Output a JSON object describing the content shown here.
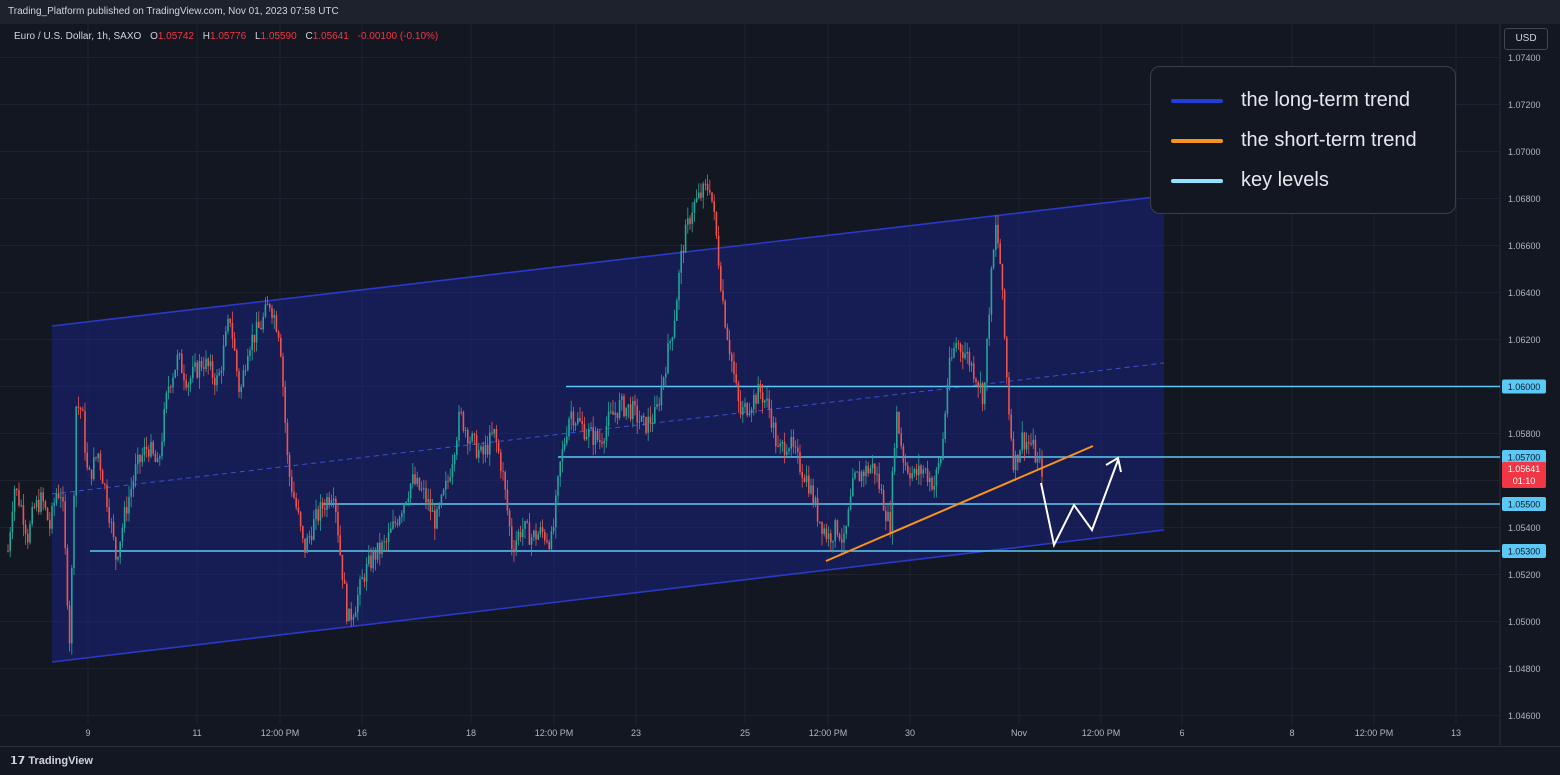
{
  "header": {
    "published_text": "Trading_Platform published on TradingView.com, Nov 01, 2023 07:58 UTC"
  },
  "symbol_line": {
    "name": "Euro / U.S. Dollar, 1h, SAXO",
    "o_label": "O",
    "o_value": "1.05742",
    "h_label": "H",
    "h_value": "1.05776",
    "l_label": "L",
    "l_value": "1.05590",
    "c_label": "C",
    "c_value": "1.05641",
    "change": "-0.00100 (-0.10%)"
  },
  "currency_button": "USD",
  "brand": "TradingView",
  "legend": {
    "items": [
      {
        "label": "the long-term trend",
        "color": "#1e3fd8"
      },
      {
        "label": "the short-term trend",
        "color": "#f7931e"
      },
      {
        "label": "key levels",
        "color": "#8fe3ff"
      }
    ]
  },
  "chart_data": {
    "type": "candlestick",
    "series_name": "Euro / U.S. Dollar",
    "y_ticks": [
      "1.07400",
      "1.07200",
      "1.07000",
      "1.06800",
      "1.06600",
      "1.06400",
      "1.06200",
      "1.06000",
      "1.05800",
      "1.05600",
      "1.05400",
      "1.05200",
      "1.05000",
      "1.04800",
      "1.04600"
    ],
    "ylim": [
      1.0455,
      1.076
    ],
    "x_ticks": [
      "9",
      "11",
      "12:00 PM",
      "16",
      "18",
      "12:00 PM",
      "23",
      "25",
      "12:00 PM",
      "30",
      "Nov",
      "12:00 PM",
      "6",
      "8",
      "12:00 PM",
      "13"
    ],
    "key_levels": [
      {
        "value": 1.06,
        "label": "1.06000"
      },
      {
        "value": 1.057,
        "label": "1.05700"
      },
      {
        "value": 1.055,
        "label": "1.05500"
      },
      {
        "value": 1.053,
        "label": "1.05300"
      }
    ],
    "current_price": {
      "value": 1.05641,
      "label": "1.05641",
      "countdown": "01:10"
    },
    "price_path": [
      [
        0,
        1.053
      ],
      [
        6,
        1.0558
      ],
      [
        14,
        1.0548
      ],
      [
        20,
        1.0536
      ],
      [
        26,
        1.0548
      ],
      [
        34,
        1.0552
      ],
      [
        42,
        1.054
      ],
      [
        48,
        1.0555
      ],
      [
        54,
        1.0555
      ],
      [
        62,
        1.049
      ],
      [
        68,
        1.0592
      ],
      [
        74,
        1.059
      ],
      [
        80,
        1.056
      ],
      [
        90,
        1.0572
      ],
      [
        100,
        1.055
      ],
      [
        108,
        1.0527
      ],
      [
        118,
        1.0548
      ],
      [
        128,
        1.0565
      ],
      [
        140,
        1.0575
      ],
      [
        150,
        1.0565
      ],
      [
        160,
        1.06
      ],
      [
        170,
        1.0612
      ],
      [
        180,
        1.0602
      ],
      [
        195,
        1.0611
      ],
      [
        210,
        1.0602
      ],
      [
        222,
        1.063
      ],
      [
        232,
        1.0596
      ],
      [
        240,
        1.0618
      ],
      [
        252,
        1.0625
      ],
      [
        262,
        1.0636
      ],
      [
        272,
        1.0622
      ],
      [
        280,
        1.0565
      ],
      [
        290,
        1.0545
      ],
      [
        296,
        1.053
      ],
      [
        306,
        1.0542
      ],
      [
        316,
        1.055
      ],
      [
        326,
        1.0557
      ],
      [
        332,
        1.053
      ],
      [
        340,
        1.05
      ],
      [
        348,
        1.0508
      ],
      [
        356,
        1.052
      ],
      [
        366,
        1.0528
      ],
      [
        378,
        1.0533
      ],
      [
        390,
        1.0545
      ],
      [
        404,
        1.056
      ],
      [
        416,
        1.0554
      ],
      [
        428,
        1.0542
      ],
      [
        440,
        1.056
      ],
      [
        452,
        1.0588
      ],
      [
        462,
        1.0578
      ],
      [
        474,
        1.057
      ],
      [
        486,
        1.058
      ],
      [
        494,
        1.0565
      ],
      [
        504,
        1.0532
      ],
      [
        514,
        1.054
      ],
      [
        524,
        1.0536
      ],
      [
        534,
        1.0538
      ],
      [
        544,
        1.0534
      ],
      [
        552,
        1.0566
      ],
      [
        562,
        1.059
      ],
      [
        570,
        1.0585
      ],
      [
        580,
        1.058
      ],
      [
        592,
        1.0577
      ],
      [
        600,
        1.0585
      ],
      [
        612,
        1.0592
      ],
      [
        624,
        1.059
      ],
      [
        636,
        1.0583
      ],
      [
        648,
        1.0588
      ],
      [
        656,
        1.0606
      ],
      [
        666,
        1.0628
      ],
      [
        674,
        1.0658
      ],
      [
        684,
        1.0676
      ],
      [
        694,
        1.0682
      ],
      [
        702,
        1.0686
      ],
      [
        708,
        1.0665
      ],
      [
        716,
        1.0632
      ],
      [
        724,
        1.061
      ],
      [
        732,
        1.0588
      ],
      [
        742,
        1.0593
      ],
      [
        752,
        1.0598
      ],
      [
        762,
        1.059
      ],
      [
        770,
        1.0572
      ],
      [
        780,
        1.0577
      ],
      [
        790,
        1.0568
      ],
      [
        800,
        1.056
      ],
      [
        810,
        1.0545
      ],
      [
        820,
        1.0536
      ],
      [
        830,
        1.054
      ],
      [
        836,
        1.0533
      ],
      [
        846,
        1.056
      ],
      [
        856,
        1.0564
      ],
      [
        866,
        1.0566
      ],
      [
        876,
        1.055
      ],
      [
        882,
        1.054
      ],
      [
        888,
        1.059
      ],
      [
        896,
        1.0568
      ],
      [
        906,
        1.0562
      ],
      [
        916,
        1.0565
      ],
      [
        926,
        1.0558
      ],
      [
        934,
        1.0572
      ],
      [
        940,
        1.0605
      ],
      [
        948,
        1.0619
      ],
      [
        958,
        1.0614
      ],
      [
        968,
        1.0605
      ],
      [
        976,
        1.0595
      ],
      [
        982,
        1.064
      ],
      [
        988,
        1.0668
      ],
      [
        992,
        1.0654
      ],
      [
        996,
        1.0625
      ],
      [
        1000,
        1.0595
      ],
      [
        1006,
        1.0566
      ],
      [
        1014,
        1.0578
      ],
      [
        1024,
        1.0575
      ],
      [
        1030,
        1.0567
      ],
      [
        1036,
        1.0564
      ]
    ]
  }
}
